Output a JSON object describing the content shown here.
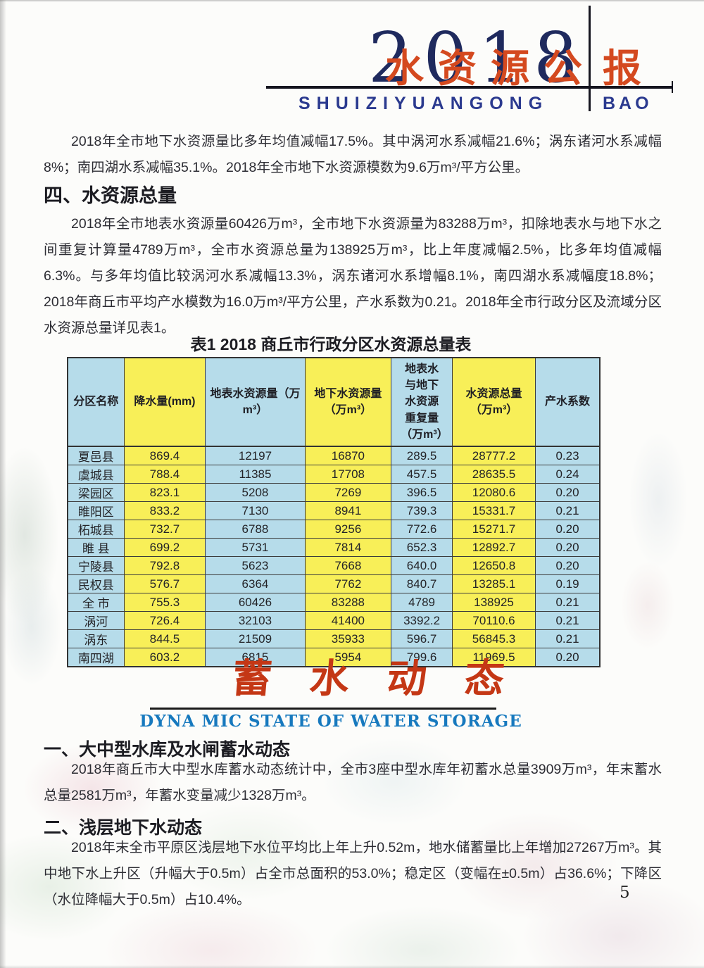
{
  "header": {
    "year": "2018",
    "title_cn": "水资源公",
    "title_cn_tail": "报",
    "romanized": "SHUIZIYUANGONG",
    "romanized_tail": "BAO"
  },
  "intro_paragraph": "2018年全市地下水资源量比多年均值减幅17.5%。其中涡河水系减幅21.6%；涡东诸河水系减幅8%；南四湖水系减幅35.1%。2018年全市地下水资源模数为9.6万m³/平方公里。",
  "section_total": {
    "title": "四、水资源总量",
    "paragraph": "2018年全市地表水资源量60426万m³，全市地下水资源量为83288万m³，扣除地表水与地下水之间重复计算量4789万m³，全市水资源总量为138925万m³，比上年度减幅2.5%，比多年均值减幅6.3%。与多年均值比较涡河水系减幅13.3%，涡东诸河水系增幅8.1%，南四湖水系减幅度18.8%；2018年商丘市平均产水模数为16.0万m³/平方公里，产水系数为0.21。2018年全市行政分区及流域分区水资源总量详见表1。"
  },
  "table": {
    "title": "表1  2018 商丘市行政分区水资源总量表",
    "headers": [
      "分区名称",
      "降水量(mm)",
      "地表水资源量（万m³）",
      "地下水资源量（万m³）",
      "地表水与地下水资源重复量（万m³）",
      "水资源总量（万m³）",
      "产水系数"
    ],
    "rows": [
      [
        "夏邑县",
        "869.4",
        "12197",
        "16870",
        "289.5",
        "28777.2",
        "0.23"
      ],
      [
        "虞城县",
        "788.4",
        "11385",
        "17708",
        "457.5",
        "28635.5",
        "0.24"
      ],
      [
        "梁园区",
        "823.1",
        "5208",
        "7269",
        "396.5",
        "12080.6",
        "0.20"
      ],
      [
        "睢阳区",
        "833.2",
        "7130",
        "8941",
        "739.3",
        "15331.7",
        "0.21"
      ],
      [
        "柘城县",
        "732.7",
        "6788",
        "9256",
        "772.6",
        "15271.7",
        "0.20"
      ],
      [
        "睢 县",
        "699.2",
        "5731",
        "7814",
        "652.3",
        "12892.7",
        "0.20"
      ],
      [
        "宁陵县",
        "792.8",
        "5623",
        "7668",
        "640.0",
        "12650.8",
        "0.20"
      ],
      [
        "民权县",
        "576.7",
        "6364",
        "7762",
        "840.7",
        "13285.1",
        "0.19"
      ],
      [
        "全 市",
        "755.3",
        "60426",
        "83288",
        "4789",
        "138925",
        "0.21"
      ],
      [
        "涡河",
        "726.4",
        "32103",
        "41400",
        "3392.2",
        "70110.6",
        "0.21"
      ],
      [
        "涡东",
        "844.5",
        "21509",
        "35933",
        "596.7",
        "56845.3",
        "0.21"
      ],
      [
        "南四湖",
        "603.2",
        "6815",
        "5954",
        "799.6",
        "11969.5",
        "0.20"
      ]
    ]
  },
  "storage_banner": {
    "title_cn": "蓄水动态",
    "title_en": "DYNA MIC STATE OF WATER STORAGE"
  },
  "section_reservoir": {
    "title": "一、大中型水库及水闸蓄水动态",
    "paragraph": "2018年商丘市大中型水库蓄水动态统计中，全市3座中型水库年初蓄水总量3909万m³，年末蓄水总量2581万m³，年蓄水变量减少1328万m³。"
  },
  "section_groundwater": {
    "title": "二、浅层地下水动态",
    "paragraph": "2018年末全市平原区浅层地下水位平均比上年上升0.52m，地水储蓄量比上年增加27267万m³。其中地下水上升区（升幅大于0.5m）占全市总面积的53.0%；稳定区（变幅在±0.5m）占36.6%；下降区（水位降幅大于0.5m）占10.4%。"
  },
  "page_number": "5",
  "colors": {
    "cell_yellow": "#f8ef58",
    "cell_blue": "#b6dcea",
    "title_red": "#d4491f",
    "digits_navy": "#1f2a5e",
    "romanized_blue": "#2b3a8f",
    "storage_red": "#c43715",
    "storage_en_blue": "#1779be"
  }
}
